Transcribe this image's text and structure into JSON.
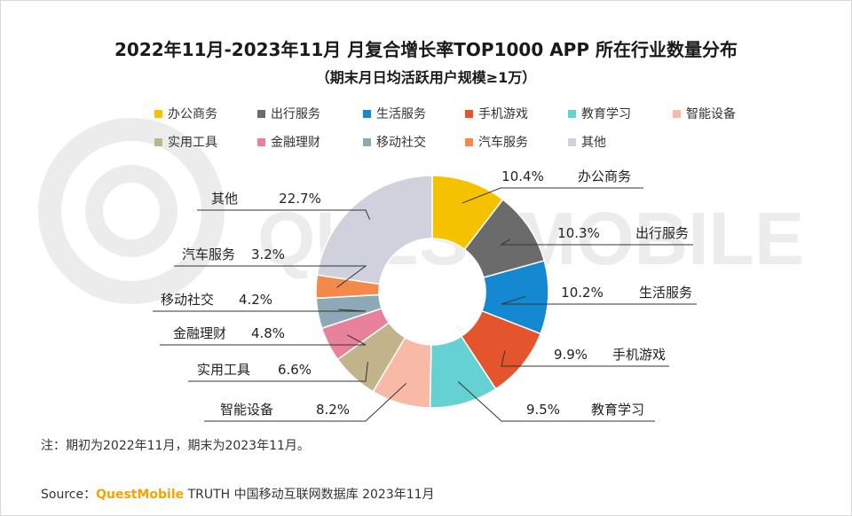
{
  "title": "2022年11月-2023年11月 月复合增长率TOP1000 APP 所在行业数量分布",
  "subtitle": "（期末月日均活跃用户规模≥1万）",
  "watermark": "QUESTMOBILE",
  "note": "注：期初为2022年11月，期末为2023年11月。",
  "source": {
    "prefix": "Source：",
    "brand": "QuestMobile",
    "suffix": " TRUTH 中国移动互联网数据库 2023年11月"
  },
  "colors": {
    "办公商务": "#f5c200",
    "出行服务": "#6b6b6b",
    "生活服务": "#1488d0",
    "手机游戏": "#e4552d",
    "教育学习": "#66d1d3",
    "智能设备": "#f9b9a7",
    "实用工具": "#c2b48a",
    "金融理财": "#e8819a",
    "移动社交": "#8ea9b6",
    "汽车服务": "#f48a4a",
    "其他": "#cfd2dc"
  },
  "chart_data": {
    "type": "donut",
    "title": "2022年11月-2023年11月 月复合增长率TOP1000 APP 所在行业数量分布",
    "subtitle": "（期末月日均活跃用户规模≥1万）",
    "legend_position": "top",
    "categories": [
      "办公商务",
      "出行服务",
      "生活服务",
      "手机游戏",
      "教育学习",
      "智能设备",
      "实用工具",
      "金融理财",
      "移动社交",
      "汽车服务",
      "其他"
    ],
    "values": [
      10.4,
      10.3,
      10.2,
      9.9,
      9.5,
      8.2,
      6.6,
      4.8,
      4.2,
      3.2,
      22.7
    ],
    "labels": [
      "10.4%",
      "10.3%",
      "10.2%",
      "9.9%",
      "9.5%",
      "8.2%",
      "6.6%",
      "4.8%",
      "4.2%",
      "3.2%",
      "22.7%"
    ],
    "unit": "%"
  }
}
